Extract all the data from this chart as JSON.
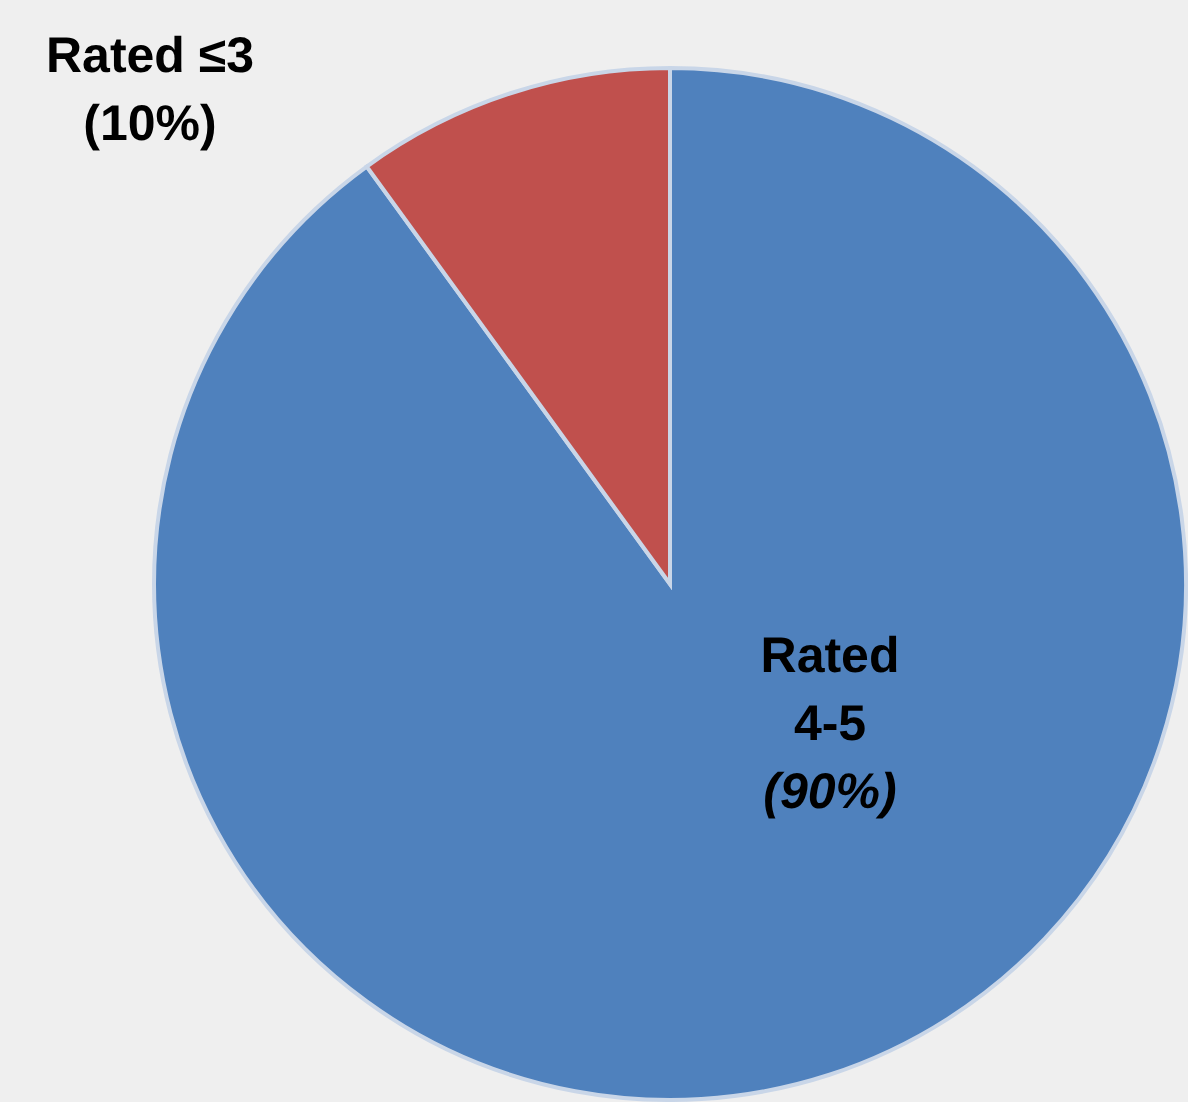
{
  "chart_data": {
    "type": "pie",
    "categories": [
      "Rated 4-5",
      "Rated ≤3"
    ],
    "values": [
      90,
      10
    ],
    "colors": [
      "#4f81bd",
      "#c0504d"
    ],
    "value_labels": [
      "(90%)",
      "(10%)"
    ]
  }
}
